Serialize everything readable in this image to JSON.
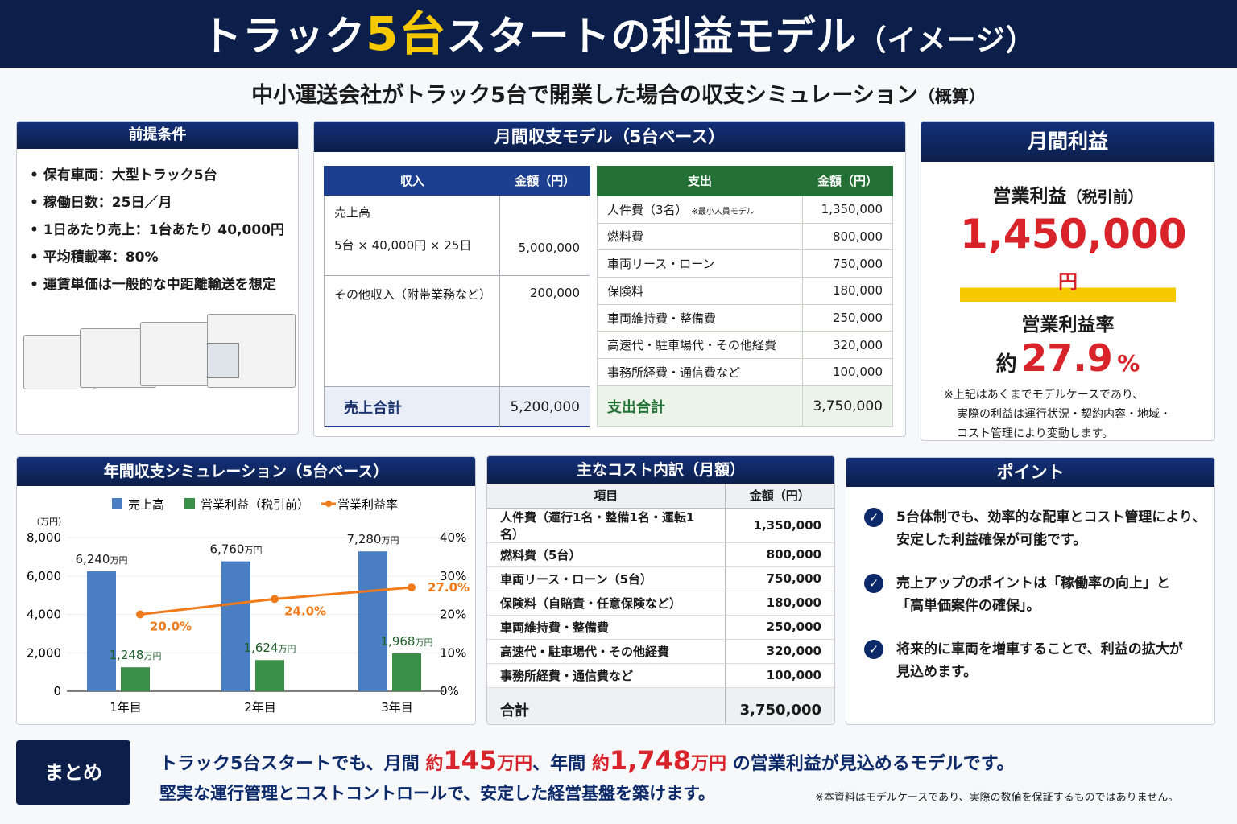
{
  "header": {
    "title_pre": "トラック",
    "title_highlight": "5台",
    "title_post": "スタートの利益モデル",
    "title_suffix": "（イメージ）"
  },
  "subtitle": {
    "main": "中小運送会社がトラック5台で開業した場合の収支シミュレーション",
    "suffix": "（概算）"
  },
  "conditions": {
    "title": "前提条件",
    "items": [
      "保有車両：大型トラック5台",
      "稼働日数：25日／月",
      "1日あたり売上：1台あたり 40,000円",
      "平均積載率：80%",
      "運賃単価は一般的な中距離輸送を想定"
    ]
  },
  "monthly": {
    "title": "月間収支モデル（5台ベース）",
    "income": {
      "headers": [
        "収入",
        "金額（円）"
      ],
      "rows": [
        {
          "label": "売上高",
          "sub": "5台 × 40,000円 × 25日",
          "value": "5,000,000"
        },
        {
          "label": "その他収入（附帯業務など）",
          "value": "200,000"
        }
      ],
      "total_label": "売上合計",
      "total_value": "5,200,000"
    },
    "expense": {
      "headers": [
        "支出",
        "金額（円）"
      ],
      "rows": [
        {
          "label": "人件費（3名）",
          "note": "※最小人員モデル",
          "value": "1,350,000"
        },
        {
          "label": "燃料費",
          "value": "800,000"
        },
        {
          "label": "車両リース・ローン",
          "value": "750,000"
        },
        {
          "label": "保険料",
          "value": "180,000"
        },
        {
          "label": "車両維持費・整備費",
          "value": "250,000"
        },
        {
          "label": "高速代・駐車場代・その他経費",
          "value": "320,000"
        },
        {
          "label": "事務所経費・通信費など",
          "value": "100,000"
        }
      ],
      "total_label": "支出合計",
      "total_value": "3,750,000"
    }
  },
  "profit": {
    "title": "月間利益",
    "label": "営業利益",
    "label_suffix": "（税引前）",
    "value": "1,450,000",
    "unit": "円",
    "rate_label": "営業利益率",
    "rate_prefix": "約",
    "rate": "27.9",
    "rate_unit": "%",
    "note": [
      "※上記はあくまでモデルケースであり、",
      "実際の利益は運行状況・契約内容・地域・",
      "コスト管理により変動します。"
    ]
  },
  "chart_data": {
    "type": "bar",
    "title": "年間収支シミュレーション（5台ベース）",
    "categories": [
      "1年目",
      "2年目",
      "3年目"
    ],
    "unit": "（万円）",
    "value_unit": "万円",
    "series": [
      {
        "name": "売上高",
        "type": "bar",
        "color": "#4a7ec2",
        "values": [
          6240,
          6760,
          7280
        ],
        "labels": [
          "6,240",
          "6,760",
          "7,280"
        ]
      },
      {
        "name": "営業利益（税引前）",
        "type": "bar",
        "color": "#3c8f48",
        "values": [
          1248,
          1624,
          1968
        ],
        "labels": [
          "1,248",
          "1,624",
          "1,968"
        ]
      },
      {
        "name": "営業利益率",
        "type": "line",
        "axis": "right",
        "color": "#f07b1a",
        "values": [
          20.0,
          24.0,
          27.0
        ],
        "labels": [
          "20.0%",
          "24.0%",
          "27.0%"
        ]
      }
    ],
    "ylim": [
      0,
      8000
    ],
    "yticks": [
      "0",
      "2,000",
      "4,000",
      "6,000",
      "8,000"
    ],
    "y2lim": [
      0,
      40
    ],
    "y2ticks": [
      "0%",
      "10%",
      "20%",
      "30%",
      "40%"
    ],
    "legend": "top"
  },
  "cost": {
    "title": "主なコスト内訳（月額）",
    "headers": [
      "項目",
      "金額（円）"
    ],
    "rows": [
      [
        "人件費（運行1名・整備1名・運転1名）",
        "1,350,000"
      ],
      [
        "燃料費（5台）",
        "800,000"
      ],
      [
        "車両リース・ローン（5台）",
        "750,000"
      ],
      [
        "保険料（自賠責・任意保険など）",
        "180,000"
      ],
      [
        "車両維持費・整備費",
        "250,000"
      ],
      [
        "高速代・駐車場代・その他経費",
        "320,000"
      ],
      [
        "事務所経費・通信費など",
        "100,000"
      ]
    ],
    "total_label": "合計",
    "total_value": "3,750,000"
  },
  "points": {
    "title": "ポイント",
    "items": [
      [
        "5台体制でも、効率的な配車とコスト管理により、",
        "安定した利益確保が可能です。"
      ],
      [
        "売上アップのポイントは「稼働率の向上」と",
        "「高単価案件の確保」。"
      ],
      [
        "将来的に車両を増車することで、利益の拡大が",
        "見込めます。"
      ]
    ]
  },
  "summary": {
    "label": "まとめ",
    "l1a": "トラック5台スタートでも、月間 ",
    "m_pre": "約",
    "m_val": "145",
    "m_unit": "万円",
    "l1b": "、年間 ",
    "y_pre": "約",
    "y_val": "1,748",
    "y_unit": "万円",
    "l1c": " の営業利益が見込めるモデルです。",
    "l2": "堅実な運行管理とコストコントロールで、安定した経営基盤を築けます。",
    "disclaimer": "※本資料はモデルケースであり、実際の数値を保証するものではありません。"
  }
}
